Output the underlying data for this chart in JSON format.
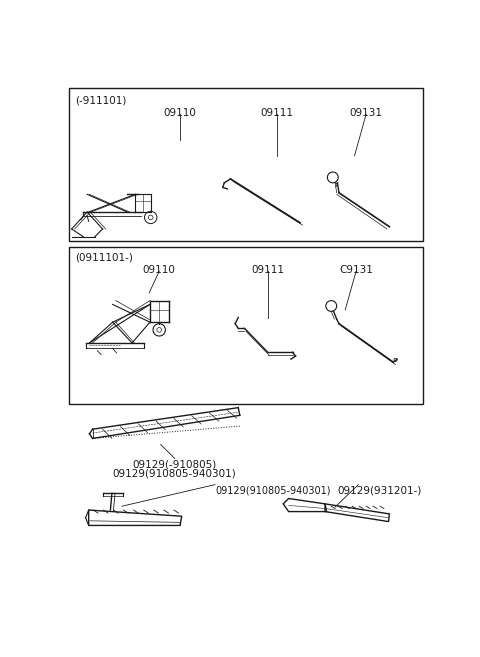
{
  "bg_color": "#ffffff",
  "line_color": "#1a1a1a",
  "box1_label": "(-911101)",
  "box2_label": "(0911101-)",
  "box1_items": [
    "09110",
    "09111",
    "09131"
  ],
  "box2_items": [
    "09110",
    "09111",
    "C9131"
  ],
  "bottom_labels": [
    "09129(-910805)",
    "09129(910805-940301)",
    "09129(931201-)"
  ],
  "fs": 7.5
}
